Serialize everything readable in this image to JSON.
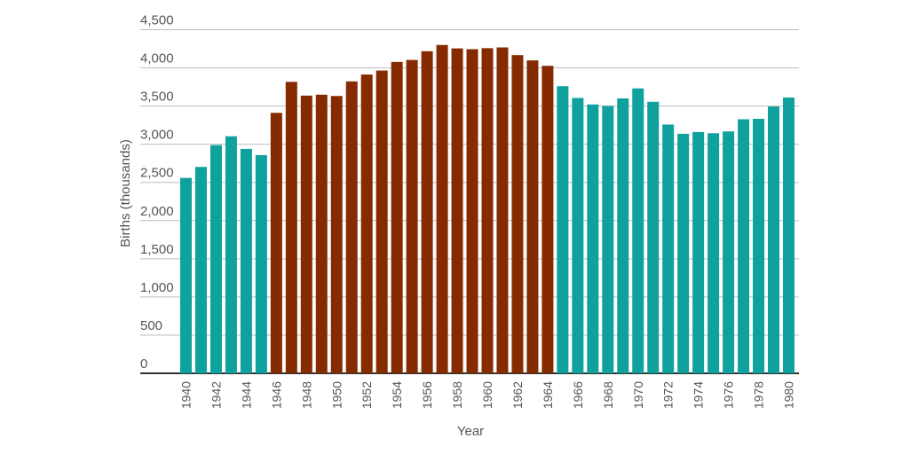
{
  "chart_data": {
    "type": "bar",
    "title": "",
    "xlabel": "Year",
    "ylabel": "Births (thousands)",
    "ylim": [
      0,
      4500
    ],
    "yticks": [
      "0",
      "500",
      "1,000",
      "1,500",
      "2,000",
      "2,500",
      "3,000",
      "3,500",
      "4,000",
      "4,500"
    ],
    "grid": true,
    "categories": [
      1940,
      1941,
      1942,
      1943,
      1944,
      1945,
      1946,
      1947,
      1948,
      1949,
      1950,
      1951,
      1952,
      1953,
      1954,
      1955,
      1956,
      1957,
      1958,
      1959,
      1960,
      1961,
      1962,
      1963,
      1964,
      1965,
      1966,
      1967,
      1968,
      1969,
      1970,
      1971,
      1972,
      1973,
      1974,
      1975,
      1976,
      1977,
      1978,
      1979,
      1980
    ],
    "xtick_labels": [
      "1940",
      "1942",
      "1944",
      "1946",
      "1948",
      "1950",
      "1952",
      "1954",
      "1956",
      "1958",
      "1960",
      "1962",
      "1964",
      "1966",
      "1968",
      "1970",
      "1972",
      "1974",
      "1976",
      "1978",
      "1980"
    ],
    "values": [
      2559,
      2703,
      2989,
      3104,
      2939,
      2858,
      3411,
      3817,
      3637,
      3649,
      3632,
      3823,
      3913,
      3965,
      4078,
      4104,
      4218,
      4300,
      4255,
      4245,
      4258,
      4268,
      4167,
      4098,
      4027,
      3760,
      3606,
      3521,
      3502,
      3600,
      3731,
      3556,
      3258,
      3137,
      3160,
      3144,
      3168,
      3327,
      3333,
      3494,
      3612
    ],
    "highlight_range": [
      1946,
      1964
    ],
    "colors": {
      "default": "#0fa19d",
      "highlight": "#862a00"
    }
  }
}
